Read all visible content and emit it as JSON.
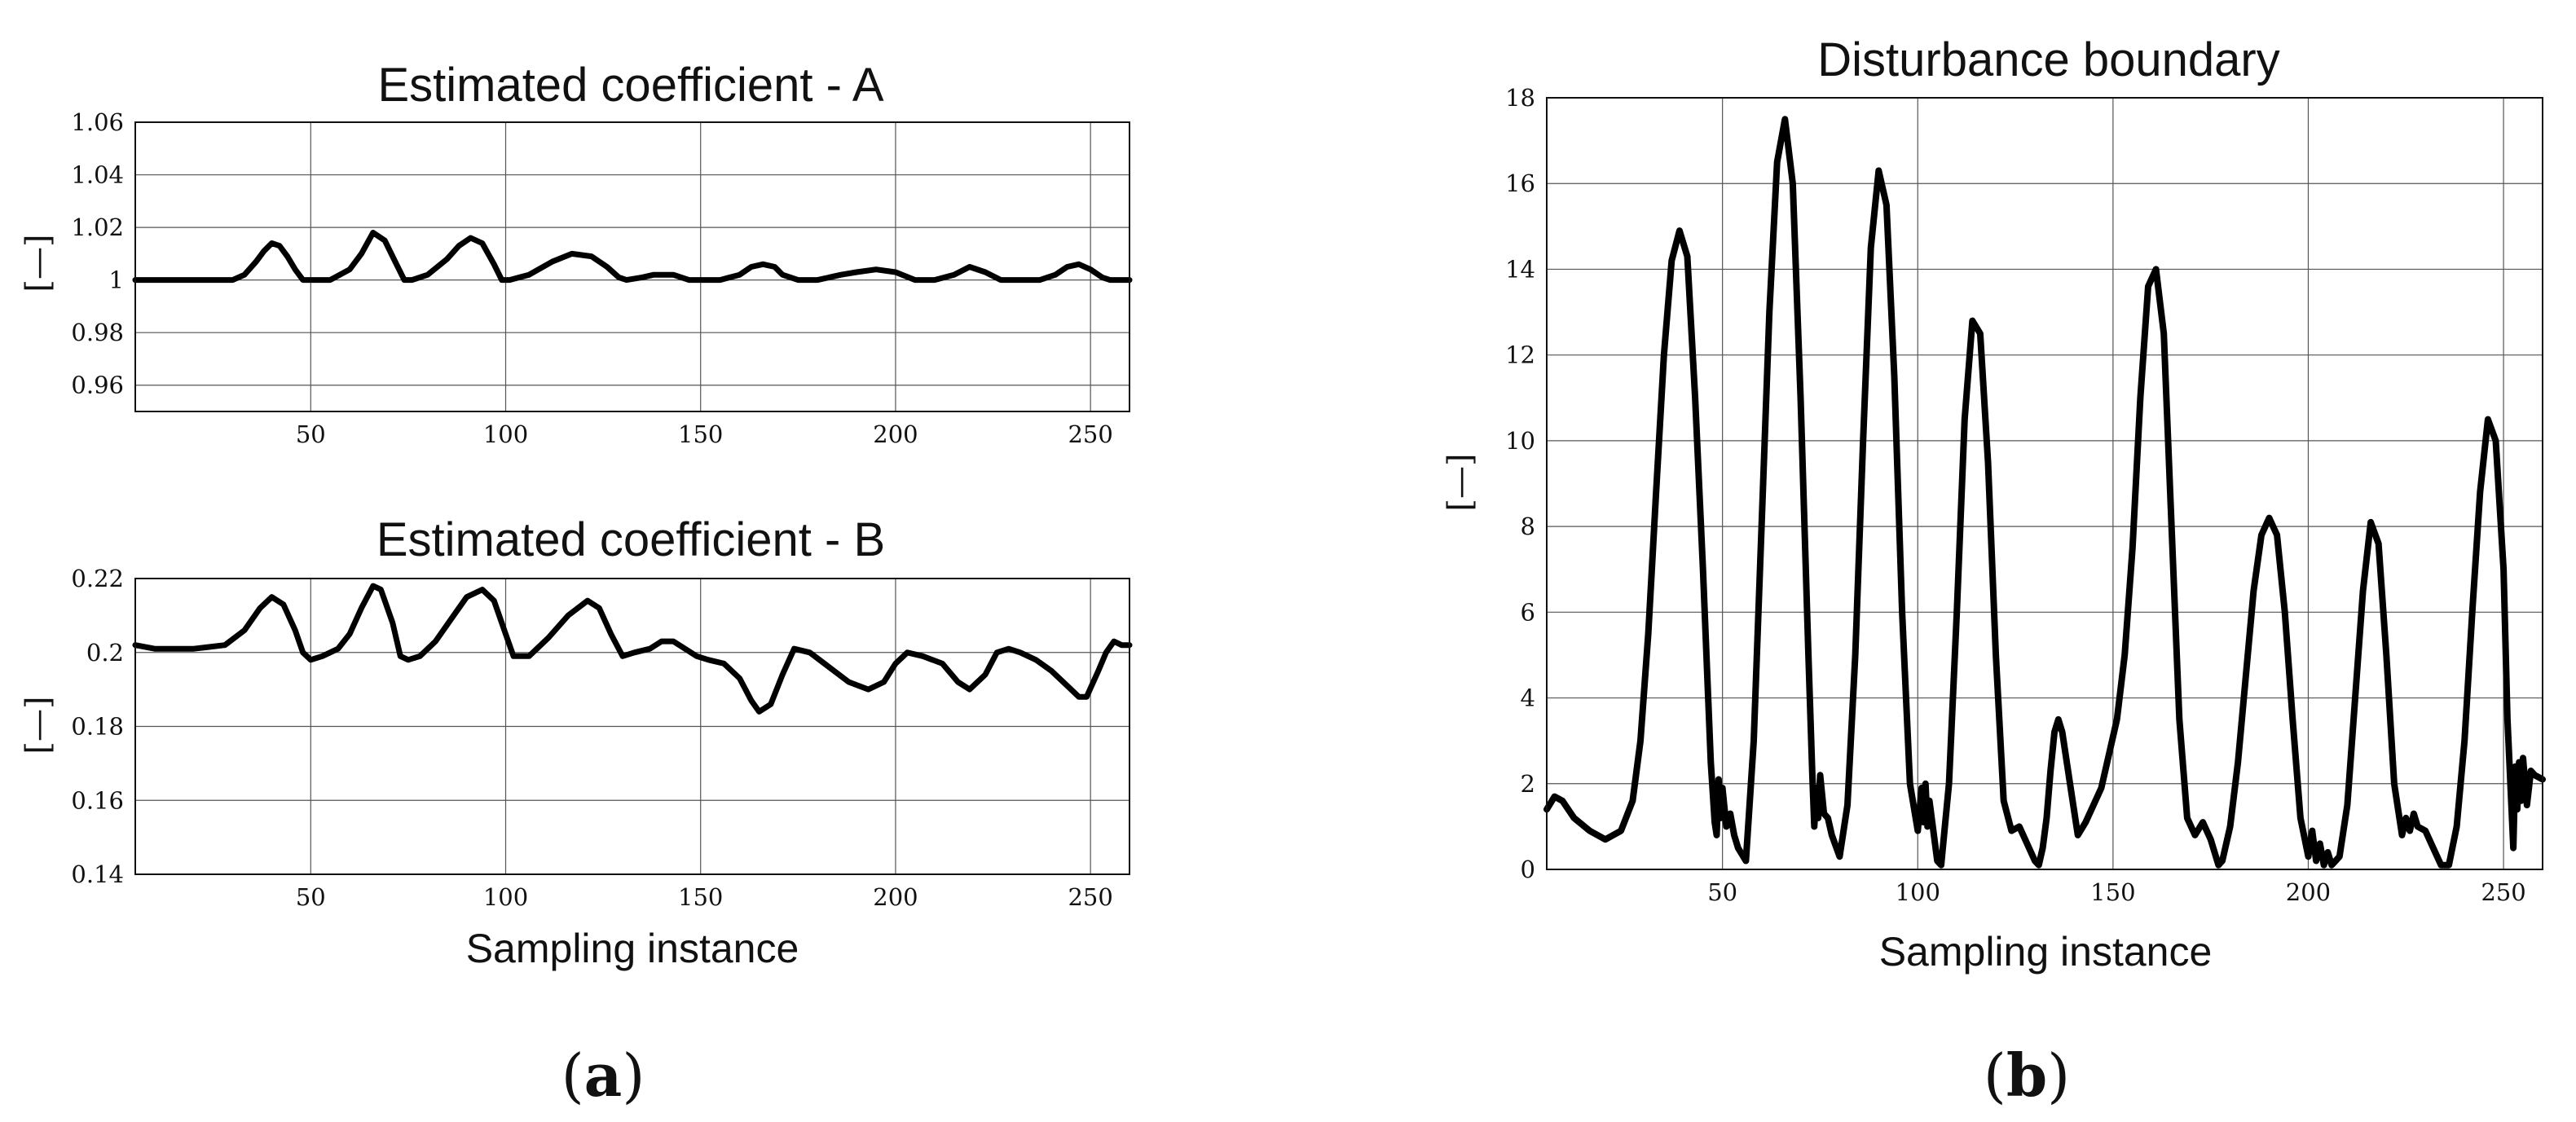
{
  "chart_data": [
    {
      "id": "A",
      "type": "line",
      "title": "Estimated coefficient - A",
      "xlabel": "",
      "ylabel": "[—]",
      "xlim": [
        5,
        260
      ],
      "ylim": [
        0.95,
        1.06
      ],
      "xticks": [
        50,
        100,
        150,
        200,
        250
      ],
      "yticks": [
        0.96,
        0.98,
        1,
        1.02,
        1.04,
        1.06
      ],
      "ytick_labels": [
        "0.96",
        "0.98",
        "1",
        "1.02",
        "1.04",
        "1.06"
      ],
      "grid": true,
      "series": [
        {
          "x": [
            5,
            20,
            30,
            33,
            36,
            38,
            40,
            42,
            44,
            46,
            48,
            50,
            55,
            60,
            63,
            66,
            69,
            72,
            74,
            76,
            80,
            85,
            88,
            91,
            94,
            97,
            99,
            101,
            106,
            112,
            117,
            122,
            126,
            129,
            131,
            135,
            138,
            143,
            147,
            150,
            155,
            160,
            163,
            166,
            169,
            171,
            175,
            180,
            186,
            190,
            195,
            200,
            205,
            210,
            215,
            219,
            223,
            227,
            232,
            237,
            241,
            244,
            247,
            250,
            253,
            255,
            257,
            260
          ],
          "y": [
            1.0,
            1.0,
            1.0,
            1.002,
            1.007,
            1.011,
            1.014,
            1.013,
            1.009,
            1.004,
            1.0,
            1.0,
            1.0,
            1.004,
            1.01,
            1.018,
            1.015,
            1.006,
            1.0,
            1.0,
            1.002,
            1.008,
            1.013,
            1.016,
            1.014,
            1.006,
            1.0,
            1.0,
            1.002,
            1.007,
            1.01,
            1.009,
            1.005,
            1.001,
            1.0,
            1.001,
            1.002,
            1.002,
            1.0,
            1.0,
            1.0,
            1.002,
            1.005,
            1.006,
            1.005,
            1.002,
            1.0,
            1.0,
            1.002,
            1.003,
            1.004,
            1.003,
            1.0,
            1.0,
            1.002,
            1.005,
            1.003,
            1.0,
            1.0,
            1.0,
            1.002,
            1.005,
            1.006,
            1.004,
            1.001,
            1.0,
            1.0,
            1.0
          ]
        }
      ]
    },
    {
      "id": "B",
      "type": "line",
      "title": "Estimated coefficient - B",
      "xlabel": "Sampling instance",
      "ylabel": "[—]",
      "xlim": [
        5,
        260
      ],
      "ylim": [
        0.14,
        0.22
      ],
      "xticks": [
        50,
        100,
        150,
        200,
        250
      ],
      "yticks": [
        0.14,
        0.16,
        0.18,
        0.2,
        0.22
      ],
      "ytick_labels": [
        "0.14",
        "0.16",
        "0.18",
        "0.2",
        "0.22"
      ],
      "grid": true,
      "series": [
        {
          "x": [
            5,
            10,
            20,
            28,
            33,
            37,
            40,
            43,
            46,
            48,
            50,
            53,
            57,
            60,
            63,
            66,
            68,
            71,
            73,
            75,
            78,
            82,
            86,
            90,
            94,
            97,
            100,
            102,
            106,
            111,
            116,
            121,
            124,
            127,
            130,
            133,
            137,
            140,
            143,
            146,
            149,
            152,
            156,
            160,
            163,
            165,
            168,
            171,
            174,
            178,
            183,
            188,
            193,
            197,
            200,
            203,
            207,
            212,
            216,
            219,
            223,
            226,
            229,
            232,
            236,
            240,
            244,
            247,
            249,
            252,
            254,
            256,
            258,
            260
          ],
          "y": [
            0.202,
            0.201,
            0.201,
            0.202,
            0.206,
            0.212,
            0.215,
            0.213,
            0.206,
            0.2,
            0.198,
            0.199,
            0.201,
            0.205,
            0.212,
            0.218,
            0.217,
            0.208,
            0.199,
            0.198,
            0.199,
            0.203,
            0.209,
            0.215,
            0.217,
            0.214,
            0.205,
            0.199,
            0.199,
            0.204,
            0.21,
            0.214,
            0.212,
            0.205,
            0.199,
            0.2,
            0.201,
            0.203,
            0.203,
            0.201,
            0.199,
            0.198,
            0.197,
            0.193,
            0.187,
            0.184,
            0.186,
            0.194,
            0.201,
            0.2,
            0.196,
            0.192,
            0.19,
            0.192,
            0.197,
            0.2,
            0.199,
            0.197,
            0.192,
            0.19,
            0.194,
            0.2,
            0.201,
            0.2,
            0.198,
            0.195,
            0.191,
            0.188,
            0.188,
            0.195,
            0.2,
            0.203,
            0.202,
            0.202
          ]
        }
      ]
    },
    {
      "id": "C",
      "type": "line",
      "title": "Disturbance boundary",
      "xlabel": "Sampling instance",
      "ylabel": "[—]",
      "xlim": [
        5,
        260
      ],
      "ylim": [
        0,
        18
      ],
      "xticks": [
        50,
        100,
        150,
        200,
        250
      ],
      "yticks": [
        0,
        2,
        4,
        6,
        8,
        10,
        12,
        14,
        16,
        18
      ],
      "ytick_labels": [
        "0",
        "2",
        "4",
        "6",
        "8",
        "10",
        "12",
        "14",
        "16",
        "18"
      ],
      "grid": true,
      "series": [
        {
          "x": [
            5,
            7,
            9,
            12,
            16,
            20,
            24,
            27,
            29,
            31,
            33,
            35,
            37,
            39,
            41,
            43,
            45,
            47,
            48,
            48.5,
            49,
            49.5,
            50,
            51,
            52,
            53,
            54,
            56,
            58,
            60,
            62,
            64,
            66,
            68,
            70,
            72,
            73,
            73.5,
            74,
            74.5,
            75,
            76,
            77,
            78,
            80,
            82,
            84,
            86,
            88,
            90,
            92,
            94,
            96,
            98,
            100,
            101,
            101.5,
            102,
            102.5,
            103,
            104,
            105,
            106,
            108,
            110,
            112,
            114,
            116,
            118,
            120,
            122,
            124,
            126,
            128,
            130,
            131,
            132,
            133,
            134,
            135,
            136,
            137,
            139,
            141,
            143,
            145,
            147,
            149,
            151,
            153,
            155,
            157,
            159,
            161,
            163,
            165,
            167,
            169,
            171,
            173,
            175,
            176,
            177,
            178,
            180,
            182,
            184,
            186,
            188,
            190,
            192,
            194,
            196,
            198,
            200,
            201,
            202,
            203,
            204,
            205,
            206,
            207,
            208,
            210,
            212,
            214,
            216,
            218,
            220,
            222,
            224,
            225,
            226,
            227,
            228,
            230,
            232,
            234,
            236,
            238,
            240,
            242,
            244,
            246,
            248,
            250,
            251,
            252,
            252.5,
            253,
            253.5,
            254,
            254.5,
            255,
            256,
            257,
            258,
            260
          ],
          "y": [
            1.4,
            1.7,
            1.6,
            1.2,
            0.9,
            0.7,
            0.9,
            1.6,
            3.0,
            5.5,
            8.8,
            12.0,
            14.2,
            14.9,
            14.3,
            11.0,
            7.0,
            2.5,
            1.1,
            0.8,
            2.1,
            1.2,
            1.9,
            1.0,
            1.3,
            0.8,
            0.5,
            0.2,
            3.0,
            8.0,
            13.0,
            16.5,
            17.5,
            16.0,
            11.0,
            5.0,
            2.2,
            1.0,
            1.9,
            1.2,
            2.2,
            1.3,
            1.2,
            0.8,
            0.3,
            1.5,
            5.0,
            10.0,
            14.5,
            16.3,
            15.5,
            11.5,
            6.0,
            2.0,
            0.9,
            1.9,
            1.1,
            2.0,
            1.0,
            1.6,
            0.9,
            0.2,
            0.1,
            2.0,
            6.0,
            10.5,
            12.8,
            12.5,
            9.5,
            5.0,
            1.6,
            0.9,
            1.0,
            0.6,
            0.2,
            0.1,
            0.5,
            1.2,
            2.3,
            3.2,
            3.5,
            3.2,
            2.0,
            0.8,
            1.1,
            1.5,
            1.9,
            2.7,
            3.5,
            5.0,
            7.5,
            11.0,
            13.6,
            14.0,
            12.5,
            8.0,
            3.5,
            1.2,
            0.8,
            1.1,
            0.7,
            0.4,
            0.1,
            0.2,
            1.0,
            2.5,
            4.5,
            6.5,
            7.8,
            8.2,
            7.8,
            6.0,
            3.5,
            1.2,
            0.3,
            0.9,
            0.2,
            0.6,
            0.1,
            0.4,
            0.1,
            0.2,
            0.3,
            1.5,
            4.0,
            6.5,
            8.1,
            7.6,
            5.0,
            2.0,
            0.8,
            1.2,
            0.9,
            1.3,
            1.0,
            0.9,
            0.5,
            0.1,
            0.1,
            1.0,
            3.0,
            6.0,
            8.8,
            10.5,
            10.0,
            7.0,
            3.5,
            1.5,
            0.5,
            2.4,
            1.4,
            2.5,
            1.6,
            2.6,
            1.5,
            2.3,
            2.2,
            2.1
          ]
        }
      ]
    }
  ],
  "panel_labels": {
    "a_open": "(",
    "a_letter": "a",
    "a_close": ")",
    "b_open": "(",
    "b_letter": "b",
    "b_close": ")"
  }
}
